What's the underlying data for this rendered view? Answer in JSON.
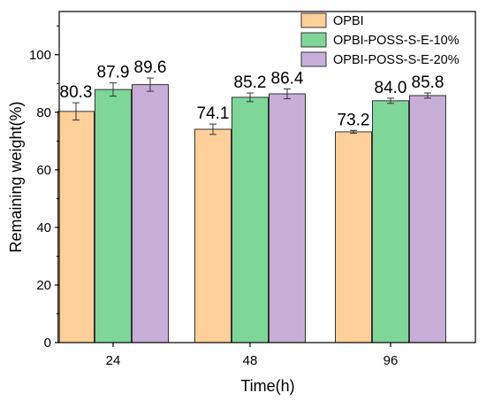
{
  "chart_data": {
    "type": "bar",
    "xlabel": "Time(h)",
    "ylabel": "Remaining weight(%)",
    "ylim": [
      0,
      115
    ],
    "yticks": [
      0,
      20,
      40,
      60,
      80,
      100
    ],
    "categories": [
      "24",
      "48",
      "96"
    ],
    "series": [
      {
        "name": "OPBI",
        "color": "#FFD09A",
        "values": [
          80.3,
          74.1,
          73.2
        ],
        "errors": [
          3.0,
          1.8,
          0.5
        ],
        "labels": [
          "80.3",
          "74.1",
          "73.2"
        ]
      },
      {
        "name": "OPBI-POSS-S-E-10%",
        "color": "#7FD699",
        "values": [
          87.9,
          85.2,
          84.0
        ],
        "errors": [
          2.3,
          1.5,
          0.9
        ],
        "labels": [
          "87.9",
          "85.2",
          "84.0"
        ]
      },
      {
        "name": "OPBI-POSS-S-E-20%",
        "color": "#C7AED9",
        "values": [
          89.6,
          86.4,
          85.8
        ],
        "errors": [
          2.3,
          1.7,
          0.9
        ],
        "labels": [
          "89.6",
          "86.4",
          "85.8"
        ]
      }
    ],
    "legend_position": "top-right",
    "error_bars": true,
    "grid": false
  }
}
